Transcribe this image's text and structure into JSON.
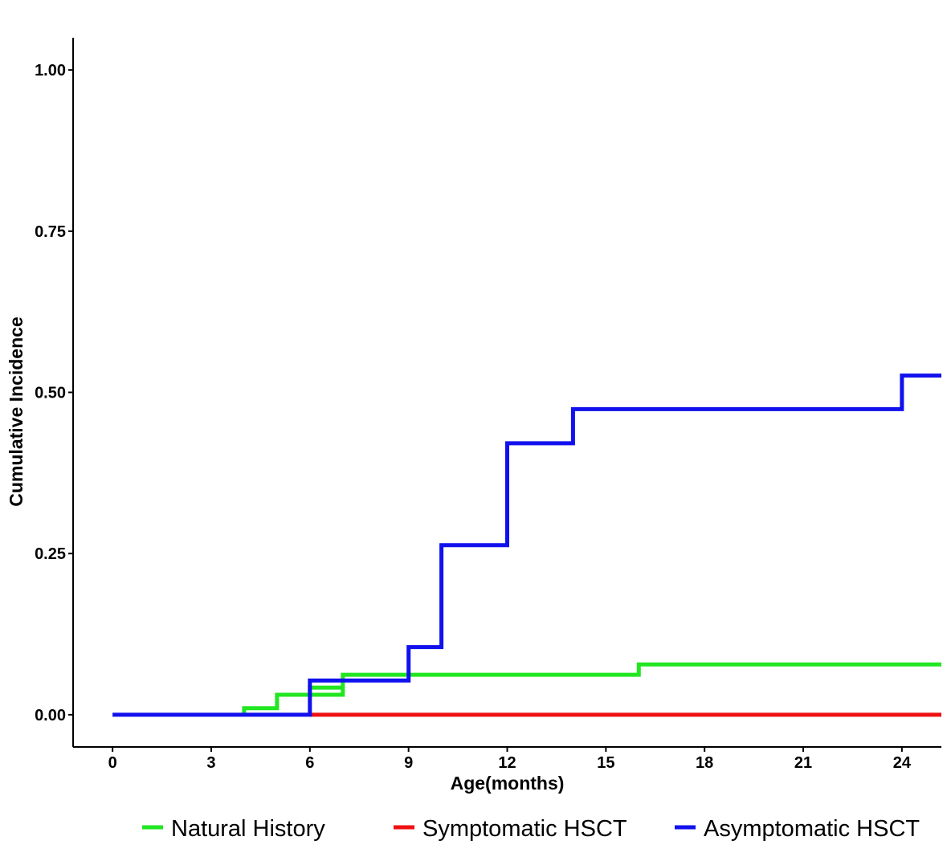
{
  "chart_data": {
    "type": "line",
    "step": true,
    "title": "",
    "xlabel": "Age(months)",
    "ylabel": "Cumulative Incidence",
    "xlim": [
      -1.2,
      25.2
    ],
    "ylim": [
      -0.05,
      1.05
    ],
    "x_ticks": [
      0,
      3,
      6,
      9,
      12,
      15,
      18,
      21,
      24
    ],
    "x_tick_labels": [
      "0",
      "3",
      "6",
      "9",
      "12",
      "15",
      "18",
      "21",
      "24"
    ],
    "y_ticks": [
      0,
      0.25,
      0.5,
      0.75,
      1
    ],
    "y_tick_labels": [
      "0.00",
      "0.25",
      "0.50",
      "0.75",
      "1.00"
    ],
    "grid": false,
    "legend_position": "bottom",
    "series": [
      {
        "name": "Natural History",
        "color": "#22E622",
        "points": [
          [
            4,
            0
          ],
          [
            4,
            0.01
          ],
          [
            5,
            0.01
          ],
          [
            5,
            0.031
          ],
          [
            7,
            0.031
          ],
          [
            7,
            0.062
          ],
          [
            16,
            0.062
          ],
          [
            16,
            0.078
          ],
          [
            25.2,
            0.078
          ]
        ],
        "x": [
          6,
          7,
          16
        ],
        "y": [
          0.042,
          0.062,
          0.078
        ]
      },
      {
        "name": "Symptomatic HSCT",
        "color": "#EE1111",
        "points": [
          [
            6,
            0
          ],
          [
            25.2,
            0
          ]
        ],
        "x": [
          6,
          25.2
        ],
        "y": [
          0,
          0
        ]
      },
      {
        "name": "Asymptomatic HSCT",
        "color": "#1111EE",
        "points": [
          [
            0,
            0
          ],
          [
            6,
            0
          ],
          [
            6,
            0.053
          ],
          [
            9,
            0.053
          ],
          [
            9,
            0.105
          ],
          [
            10,
            0.105
          ],
          [
            10,
            0.263
          ],
          [
            12,
            0.263
          ],
          [
            12,
            0.421
          ],
          [
            14,
            0.421
          ],
          [
            14,
            0.474
          ],
          [
            24,
            0.474
          ],
          [
            24,
            0.526
          ],
          [
            25.2,
            0.526
          ]
        ],
        "x": [
          0,
          6,
          9,
          10,
          12,
          14,
          24
        ],
        "y": [
          0,
          0.053,
          0.105,
          0.263,
          0.421,
          0.474,
          0.526
        ]
      }
    ],
    "extra_segments": [
      {
        "series": "Natural History",
        "points": [
          [
            6,
            0.031
          ],
          [
            6,
            0.042
          ],
          [
            7,
            0.042
          ]
        ]
      }
    ]
  }
}
